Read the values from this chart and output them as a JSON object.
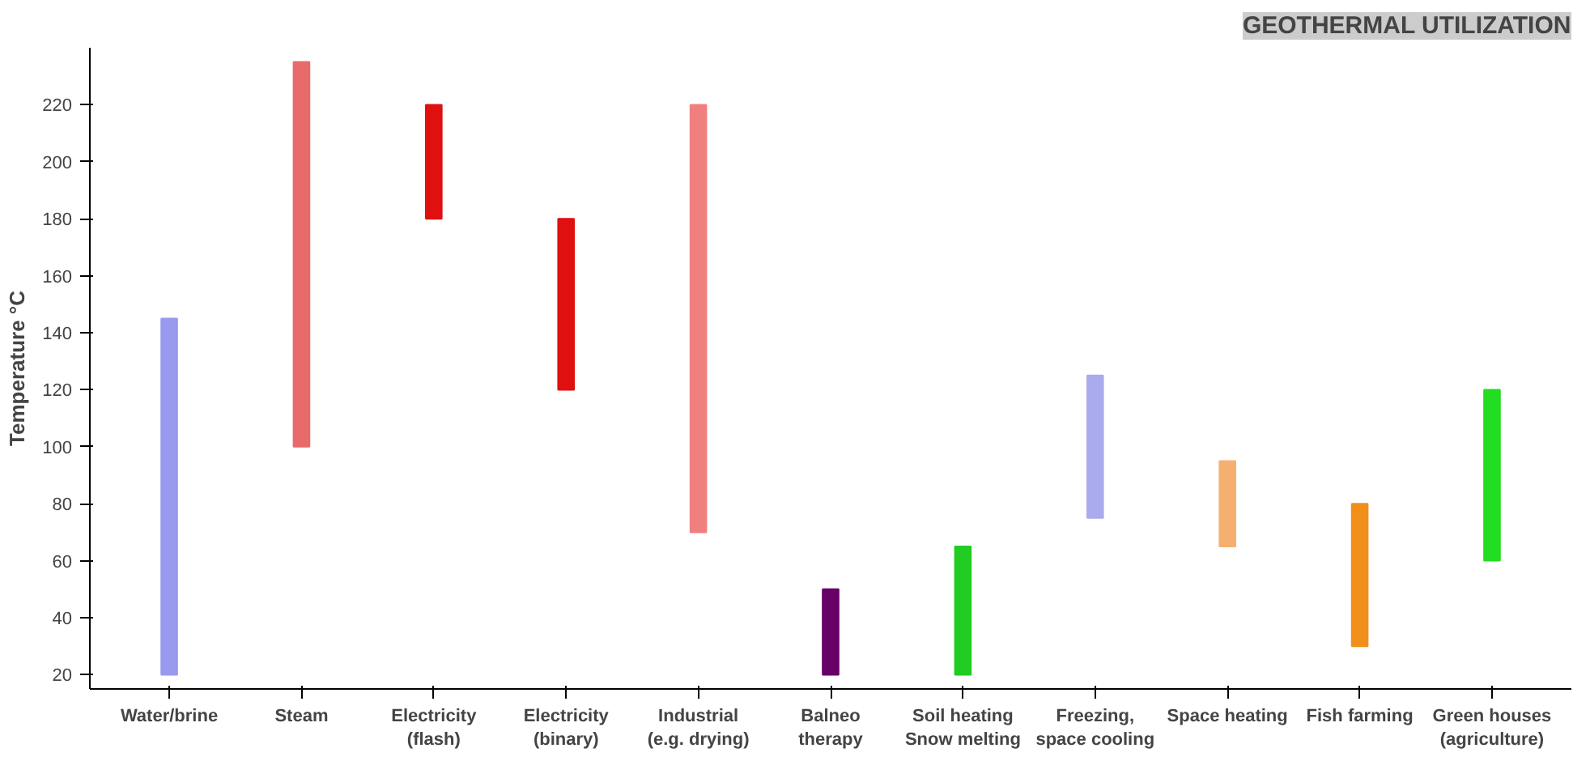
{
  "chart_data": {
    "type": "bar",
    "title": "GEOTHERMAL UTILIZATION",
    "ylabel": "Temperature °C",
    "categories": [
      "Water/brine",
      "Steam",
      "Electricity (flash)",
      "Electricity (binary)",
      "Industrial (e.g. drying)",
      "Balneo therapy",
      "Soil heating Snow melting",
      "Freezing, space cooling",
      "Space heating",
      "Fish farming",
      "Green houses (agriculture)"
    ],
    "base": [
      20,
      100,
      180,
      120,
      70,
      20,
      20,
      75,
      65,
      30,
      60
    ],
    "values": [
      125,
      135,
      40,
      60,
      150,
      30,
      45,
      50,
      30,
      50,
      60
    ],
    "colors": [
      "#9999ee",
      "#e86a6a",
      "#e01010",
      "#e01010",
      "#f08080",
      "#660066",
      "#22cc22",
      "#aaaaee",
      "#f5b070",
      "#f0901a",
      "#22dd22"
    ],
    "ylim": [
      15,
      240
    ],
    "yticks": [
      20,
      40,
      60,
      80,
      100,
      120,
      140,
      160,
      180,
      200,
      220
    ],
    "grid": false
  }
}
